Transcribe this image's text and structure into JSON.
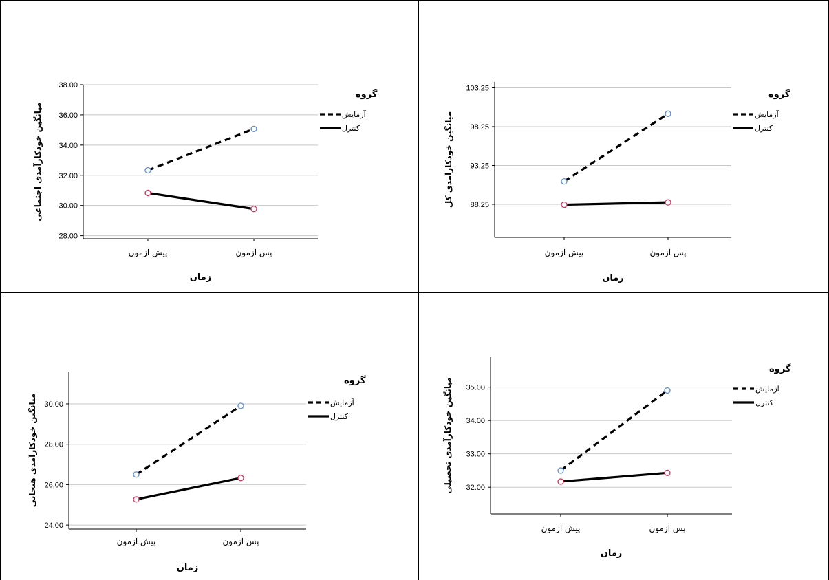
{
  "chart_data": [
    {
      "type": "line",
      "ylabel": "میانگین خودکارآمدی اجتماعی",
      "xlabel": "زمان",
      "categories": [
        "پیش آزمون",
        "پس آزمون"
      ],
      "yticks": [
        "28.00",
        "30.00",
        "32.00",
        "34.00",
        "36.00",
        "38.00"
      ],
      "ylim": [
        27.8,
        38
      ],
      "legend_title": "گروه",
      "legend_placement": "right",
      "grid": true,
      "series": [
        {
          "name": "آزمایش",
          "values": [
            32.33,
            35.07
          ],
          "style": "dashed",
          "marker_color": "#5b8fd6"
        },
        {
          "name": "کنترل",
          "values": [
            30.83,
            29.77
          ],
          "style": "solid",
          "marker_color": "#d6335b"
        }
      ]
    },
    {
      "type": "line",
      "ylabel": "میانگین خودکارآمدی کل",
      "xlabel": "زمان",
      "categories": [
        "پیش آزمون",
        "پس آزمون"
      ],
      "yticks": [
        "88.25",
        "93.25",
        "98.25",
        "103.25"
      ],
      "ylim": [
        84,
        104
      ],
      "legend_title": "گروه",
      "legend_placement": "right",
      "grid": true,
      "series": [
        {
          "name": "آزمایش",
          "values": [
            91.2,
            99.9
          ],
          "style": "dashed",
          "marker_color": "#5b8fd6"
        },
        {
          "name": "کنترل",
          "values": [
            88.2,
            88.5
          ],
          "style": "solid",
          "marker_color": "#d6335b"
        }
      ]
    },
    {
      "type": "line",
      "ylabel": "میانگین خودکارآمدی هیجانی",
      "xlabel": "زمان",
      "categories": [
        "پیش آزمون",
        "پس آزمون"
      ],
      "yticks": [
        "24.00",
        "26.00",
        "28.00",
        "30.00"
      ],
      "ylim": [
        23.8,
        31.6
      ],
      "legend_title": "گروه",
      "legend_placement": "right",
      "grid": true,
      "series": [
        {
          "name": "آزمایش",
          "values": [
            26.5,
            29.9
          ],
          "style": "dashed",
          "marker_color": "#5b8fd6"
        },
        {
          "name": "کنترل",
          "values": [
            25.27,
            26.33
          ],
          "style": "solid",
          "marker_color": "#d6335b"
        }
      ]
    },
    {
      "type": "line",
      "ylabel": "میانگین خودکارآمدی تحصیلی",
      "xlabel": "زمان",
      "categories": [
        "پیش آزمون",
        "پس آزمون"
      ],
      "yticks": [
        "32.00",
        "33.00",
        "34.00",
        "35.00"
      ],
      "ylim": [
        31.2,
        35.9
      ],
      "legend_title": "گروه",
      "legend_placement": "right",
      "grid": true,
      "series": [
        {
          "name": "آزمایش",
          "values": [
            32.5,
            34.9
          ],
          "style": "dashed",
          "marker_color": "#5b8fd6"
        },
        {
          "name": "کنترل",
          "values": [
            32.17,
            32.43
          ],
          "style": "solid",
          "marker_color": "#d6335b"
        }
      ]
    }
  ]
}
